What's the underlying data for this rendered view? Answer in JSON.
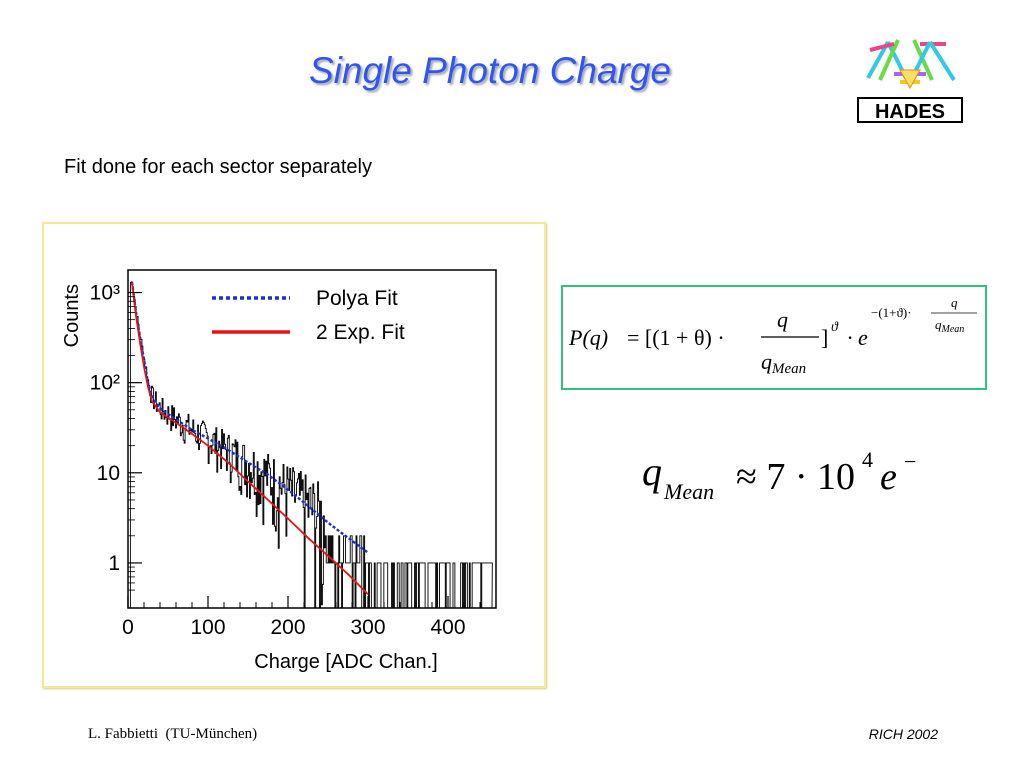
{
  "slide": {
    "title": "Single Photon Charge",
    "subtitle": "Fit done for each sector separately",
    "footer_left": "L. Fabbietti  (TU-München)",
    "footer_right": "RICH 2002"
  },
  "logo": {
    "text": "HADES",
    "icon": "hades-detector-logo"
  },
  "formula": {
    "lhs": "P(q)",
    "open": "= [(1 + θ) ·",
    "frac_num": "q",
    "frac_den": "q",
    "frac_den_sub": "Mean",
    "close": "]",
    "exp_theta": "ϑ",
    "dot_e": "· e",
    "exp_term": "−(1+ϑ)·",
    "exp_frac_num": "q",
    "exp_frac_den": "q",
    "exp_frac_den_sub": "Mean"
  },
  "formula2": {
    "q": "q",
    "sub": "Mean",
    "approx": "≈ 7 · 10",
    "power": "4",
    "e": "e",
    "minus": "−"
  },
  "chart_data": {
    "type": "line",
    "xlabel": "Charge [ADC Chan.]",
    "ylabel": "Counts",
    "x_ticks": [
      "0",
      "100",
      "200",
      "300",
      "400"
    ],
    "y_ticks": [
      "1",
      "10",
      "10²",
      "10³"
    ],
    "xlim": [
      0,
      460
    ],
    "ylim_log10": [
      -0.5,
      3.25
    ],
    "legend_position": "top-right",
    "colors": {
      "polya": "#1a2fd8",
      "two_exp": "#e41414",
      "hist": "#000000"
    },
    "series": [
      {
        "name": "Polya Fit",
        "style": "dotted",
        "x": [
          5,
          10,
          15,
          20,
          25,
          30,
          40,
          60,
          80,
          100,
          125,
          150,
          175,
          200,
          225,
          250,
          275,
          300
        ],
        "y": [
          1300,
          600,
          320,
          180,
          100,
          70,
          52,
          39,
          30,
          24,
          18,
          13,
          9.5,
          6.5,
          4.3,
          2.8,
          1.9,
          1.3
        ]
      },
      {
        "name": "2 Exp. Fit",
        "style": "solid",
        "x": [
          5,
          10,
          15,
          20,
          25,
          30,
          40,
          60,
          80,
          100,
          125,
          150,
          175,
          200,
          225,
          250,
          275,
          300
        ],
        "y": [
          1300,
          550,
          280,
          150,
          90,
          62,
          47,
          36,
          27,
          20,
          13,
          8.0,
          5.0,
          3.1,
          1.9,
          1.2,
          0.75,
          0.45
        ]
      }
    ]
  }
}
